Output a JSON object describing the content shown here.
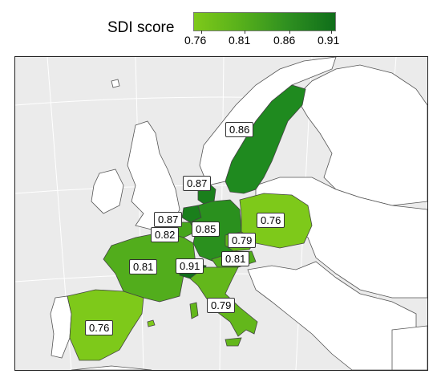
{
  "legend": {
    "title": "SDI score",
    "ticks": [
      "0.76",
      "0.81",
      "0.86",
      "0.91"
    ],
    "range": [
      0.75,
      0.915
    ],
    "color_low": "#7ec91a",
    "color_high": "#0f6e1a"
  },
  "map": {
    "background": "#ebebeb",
    "no_data_fill": "#ffffff",
    "border_color": "#555555"
  },
  "countries": [
    {
      "id": "sweden",
      "value": 0.86,
      "label": "0.86"
    },
    {
      "id": "denmark",
      "value": 0.87,
      "label": "0.87"
    },
    {
      "id": "netherlands",
      "value": 0.87,
      "label": "0.87"
    },
    {
      "id": "belgium",
      "value": 0.82,
      "label": "0.82"
    },
    {
      "id": "germany",
      "value": 0.85,
      "label": "0.85"
    },
    {
      "id": "poland",
      "value": 0.76,
      "label": "0.76"
    },
    {
      "id": "czechia",
      "value": 0.79,
      "label": "0.79"
    },
    {
      "id": "austria",
      "value": 0.81,
      "label": "0.81"
    },
    {
      "id": "france",
      "value": 0.81,
      "label": "0.81"
    },
    {
      "id": "switzerland",
      "value": 0.91,
      "label": "0.91"
    },
    {
      "id": "italy",
      "value": 0.79,
      "label": "0.79"
    },
    {
      "id": "spain",
      "value": 0.76,
      "label": "0.76"
    }
  ]
}
